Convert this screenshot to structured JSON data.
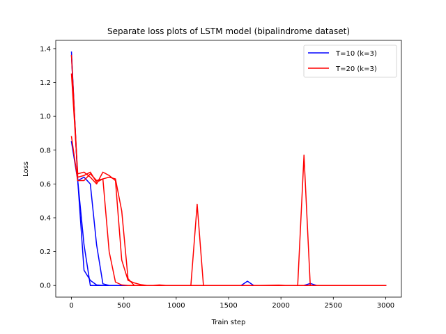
{
  "chart_data": {
    "type": "line",
    "title": "Separate loss plots of LSTM model (bipalindrome dataset)",
    "xlabel": "Train step",
    "ylabel": "Loss",
    "xlim": [
      -150,
      3150
    ],
    "ylim": [
      -0.069,
      1.449
    ],
    "xticks": [
      0,
      500,
      1000,
      1500,
      2000,
      2500,
      3000
    ],
    "yticks": [
      0.0,
      0.2,
      0.4,
      0.6,
      0.8,
      1.0,
      1.2,
      1.4
    ],
    "xtick_labels": [
      "0",
      "500",
      "1000",
      "1500",
      "2000",
      "2500",
      "3000"
    ],
    "ytick_labels": [
      "0.0",
      "0.2",
      "0.4",
      "0.6",
      "0.8",
      "1.0",
      "1.2",
      "1.4"
    ],
    "grid": false,
    "legend_position": "top-right",
    "legend": [
      {
        "label": "T=10 (k=3)",
        "color": "#0000ff"
      },
      {
        "label": "T=20 (k=3)",
        "color": "#ff0000"
      }
    ],
    "series": [
      {
        "legend_index": 0,
        "color": "#0000ff",
        "points": [
          [
            0,
            1.38
          ],
          [
            60,
            0.62
          ],
          [
            120,
            0.64
          ],
          [
            180,
            0.6
          ],
          [
            240,
            0.24
          ],
          [
            300,
            0.01
          ],
          [
            360,
            0.0
          ],
          [
            420,
            0.0
          ],
          [
            480,
            0.0
          ],
          [
            600,
            0.0
          ],
          [
            900,
            0.0
          ],
          [
            1200,
            0.0
          ],
          [
            1500,
            0.0
          ],
          [
            1620,
            0.0
          ],
          [
            1680,
            0.025
          ],
          [
            1740,
            0.0
          ],
          [
            2000,
            0.0
          ],
          [
            2220,
            0.0
          ],
          [
            2280,
            0.012
          ],
          [
            2340,
            0.0
          ],
          [
            2700,
            0.0
          ],
          [
            3000,
            0.0
          ]
        ]
      },
      {
        "legend_index": 0,
        "color": "#0000ff",
        "points": [
          [
            0,
            0.85
          ],
          [
            60,
            0.62
          ],
          [
            120,
            0.09
          ],
          [
            180,
            0.03
          ],
          [
            240,
            0.003
          ],
          [
            300,
            0.0
          ],
          [
            600,
            0.0
          ],
          [
            900,
            0.0
          ],
          [
            1200,
            0.0
          ],
          [
            1500,
            0.0
          ],
          [
            1800,
            0.0
          ],
          [
            2100,
            0.0
          ],
          [
            2400,
            0.0
          ],
          [
            2700,
            0.0
          ],
          [
            3000,
            0.0
          ]
        ]
      },
      {
        "legend_index": 0,
        "color": "#0000ff",
        "points": [
          [
            0,
            1.36
          ],
          [
            60,
            0.62
          ],
          [
            120,
            0.24
          ],
          [
            180,
            0.0
          ],
          [
            240,
            0.0
          ],
          [
            600,
            0.0
          ],
          [
            1200,
            0.0
          ],
          [
            1800,
            0.0
          ],
          [
            2400,
            0.0
          ],
          [
            3000,
            0.0
          ]
        ]
      },
      {
        "legend_index": 1,
        "color": "#ff0000",
        "points": [
          [
            0,
            1.36
          ],
          [
            60,
            0.64
          ],
          [
            120,
            0.65
          ],
          [
            180,
            0.67
          ],
          [
            240,
            0.61
          ],
          [
            300,
            0.63
          ],
          [
            360,
            0.64
          ],
          [
            420,
            0.63
          ],
          [
            480,
            0.44
          ],
          [
            540,
            0.04
          ],
          [
            600,
            0.0
          ],
          [
            660,
            0.0
          ],
          [
            720,
            0.0
          ],
          [
            1140,
            0.0
          ],
          [
            1200,
            0.48
          ],
          [
            1260,
            0.0
          ],
          [
            1320,
            0.0
          ],
          [
            1500,
            0.0
          ],
          [
            1800,
            0.0
          ],
          [
            2160,
            0.0
          ],
          [
            2220,
            0.77
          ],
          [
            2280,
            0.0
          ],
          [
            2340,
            0.0
          ],
          [
            2700,
            0.0
          ],
          [
            3000,
            0.0
          ]
        ]
      },
      {
        "legend_index": 1,
        "color": "#ff0000",
        "points": [
          [
            0,
            1.25
          ],
          [
            60,
            0.66
          ],
          [
            120,
            0.67
          ],
          [
            180,
            0.64
          ],
          [
            240,
            0.6
          ],
          [
            300,
            0.67
          ],
          [
            360,
            0.65
          ],
          [
            420,
            0.62
          ],
          [
            480,
            0.15
          ],
          [
            540,
            0.03
          ],
          [
            600,
            0.015
          ],
          [
            660,
            0.005
          ],
          [
            720,
            0.0
          ],
          [
            780,
            0.0
          ],
          [
            840,
            0.003
          ],
          [
            900,
            0.0
          ],
          [
            1200,
            0.0
          ],
          [
            1500,
            0.0
          ],
          [
            1800,
            0.0
          ],
          [
            1980,
            0.002
          ],
          [
            2040,
            0.0
          ],
          [
            2400,
            0.0
          ],
          [
            2700,
            0.0
          ],
          [
            3000,
            0.0
          ]
        ]
      },
      {
        "legend_index": 1,
        "color": "#ff0000",
        "points": [
          [
            0,
            0.88
          ],
          [
            60,
            0.62
          ],
          [
            120,
            0.62
          ],
          [
            180,
            0.66
          ],
          [
            240,
            0.62
          ],
          [
            300,
            0.63
          ],
          [
            360,
            0.2
          ],
          [
            420,
            0.02
          ],
          [
            480,
            0.003
          ],
          [
            540,
            0.0
          ],
          [
            600,
            0.0
          ],
          [
            900,
            0.0
          ],
          [
            1200,
            0.0
          ],
          [
            1500,
            0.0
          ],
          [
            1800,
            0.0
          ],
          [
            2100,
            0.0
          ],
          [
            2400,
            0.0
          ],
          [
            2700,
            0.0
          ],
          [
            3000,
            0.0
          ]
        ]
      }
    ]
  }
}
